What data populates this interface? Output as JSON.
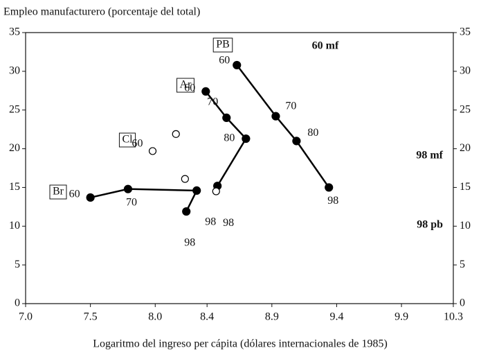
{
  "chart_data": {
    "type": "line",
    "title": "Empleo manufacturero (porcentaje del total)",
    "x_label": "Logaritmo del ingreso per cápita (dólares internacionales de 1985)",
    "xlim": [
      7.0,
      10.3
    ],
    "xticks": [
      {
        "value": 7,
        "label": "7.0"
      },
      7.5,
      {
        "value": 8,
        "label": "8.0"
      },
      8.4,
      8.9,
      9.4,
      9.9,
      10.3
    ],
    "ylim": [
      0,
      35
    ],
    "yticks": [
      0,
      5,
      10,
      15,
      20,
      25,
      30,
      35
    ],
    "series": [
      {
        "name": "Br",
        "color": "#000000",
        "line": true,
        "marker": "filled",
        "x": [
          7.5,
          7.79,
          8.32,
          8.24
        ],
        "values": [
          13.7,
          14.8,
          14.6,
          11.9
        ],
        "point_labels": [
          "60",
          "70",
          "98",
          "98"
        ]
      },
      {
        "name": "Ar",
        "color": "#000000",
        "line": true,
        "marker": "filled",
        "x": [
          8.39,
          8.55,
          8.7,
          8.48
        ],
        "values": [
          27.4,
          24.0,
          21.3,
          15.2
        ],
        "point_labels": [
          "60",
          "70",
          "80",
          "98"
        ]
      },
      {
        "name": "PB",
        "color": "#000000",
        "line": true,
        "marker": "filled",
        "x": [
          8.63,
          8.93,
          9.09,
          9.34
        ],
        "values": [
          30.8,
          24.2,
          21.0,
          15.0
        ],
        "point_labels": [
          "60",
          "70",
          "80",
          "98"
        ]
      },
      {
        "name": "Cl",
        "color": "#000000",
        "line": false,
        "marker": "open",
        "x": [
          7.98,
          8.16,
          8.23,
          8.47
        ],
        "values": [
          19.7,
          21.9,
          16.1,
          14.5
        ],
        "point_labels": [
          "60",
          null,
          null,
          null
        ]
      }
    ],
    "annotations": [
      "60 mf",
      "98 mf",
      "98 pb"
    ]
  }
}
